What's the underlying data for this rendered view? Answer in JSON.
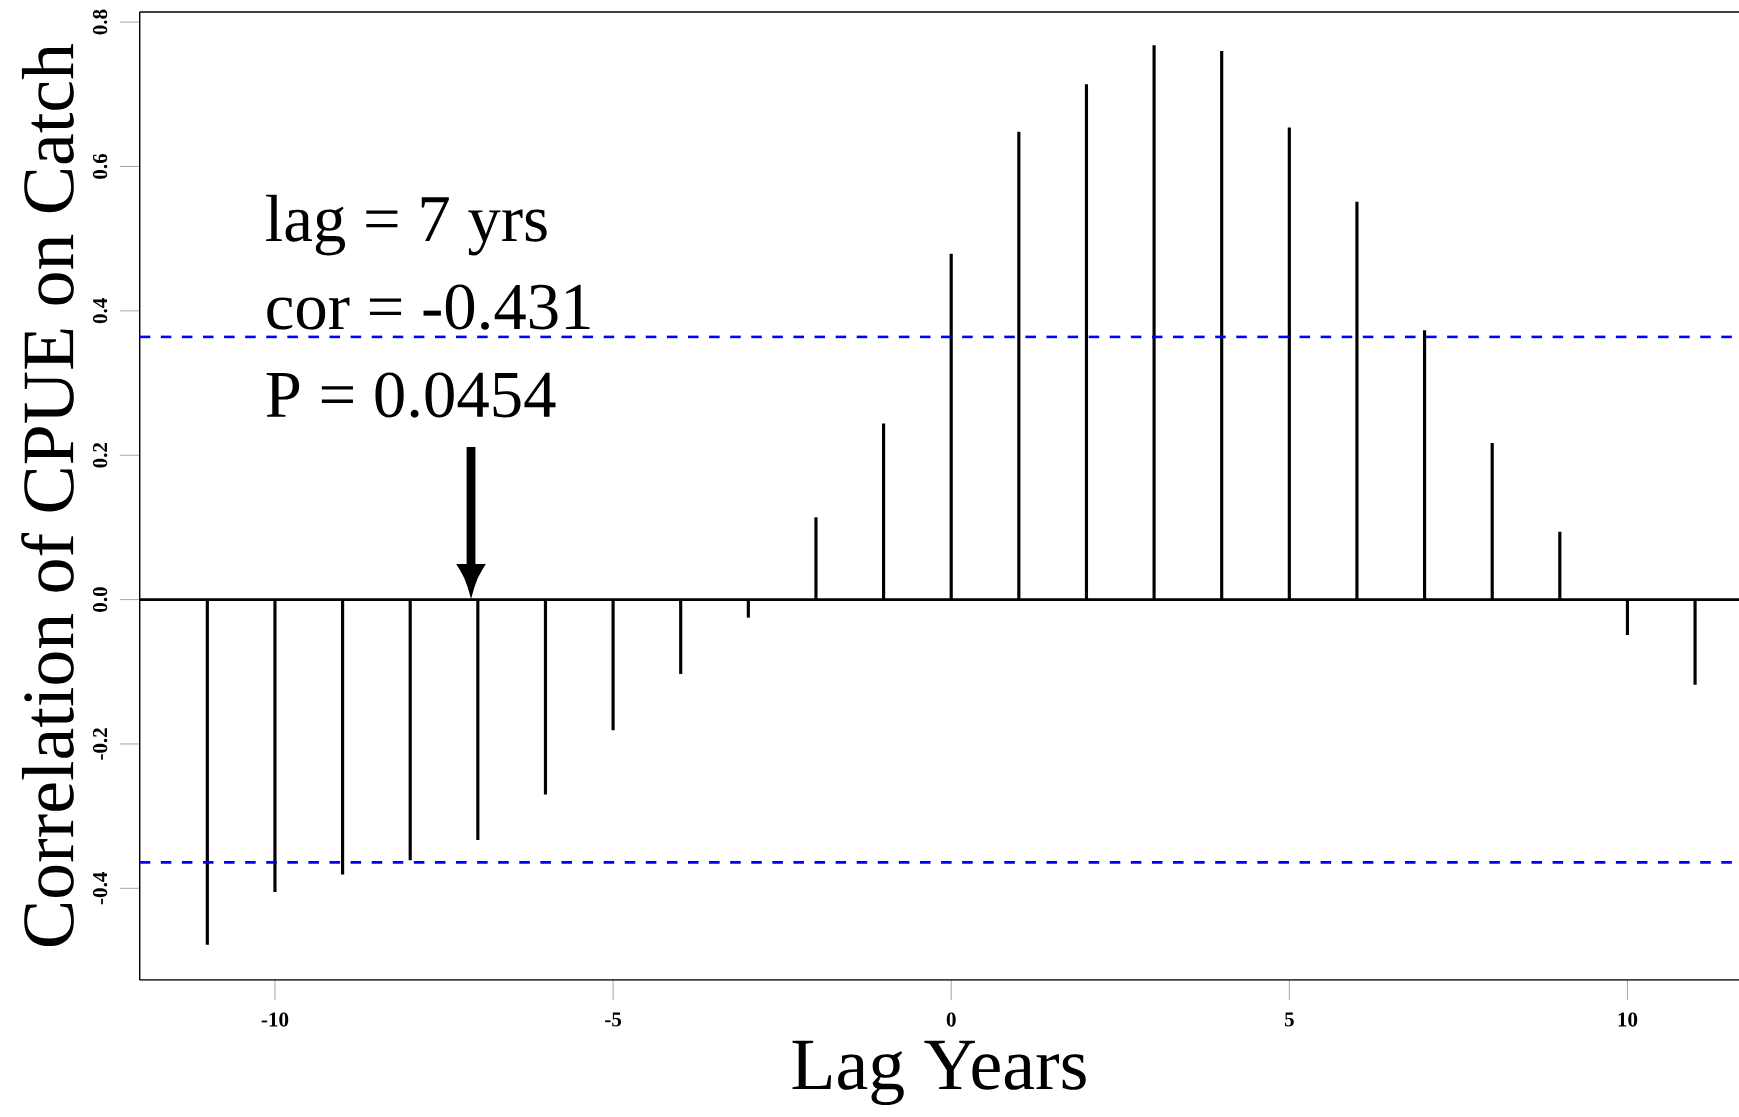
{
  "chart_data": {
    "type": "bar",
    "xlabel": "Lag Years",
    "ylabel": "Correlation of CPUE on Catch",
    "x": [
      -11,
      -10,
      -9,
      -8,
      -7,
      -6,
      -5,
      -4,
      -3,
      -2,
      -1,
      0,
      1,
      2,
      3,
      4,
      5,
      6,
      7,
      8,
      9,
      10,
      11
    ],
    "values": [
      -0.478,
      -0.405,
      -0.381,
      -0.361,
      -0.333,
      -0.27,
      -0.181,
      -0.103,
      -0.025,
      0.114,
      0.244,
      0.479,
      0.648,
      0.714,
      0.768,
      0.76,
      0.654,
      0.551,
      0.373,
      0.217,
      0.094,
      -0.049,
      -0.118
    ],
    "color": "#000000",
    "xlim": [
      -12,
      11.65
    ],
    "ylim": [
      -0.527,
      0.814
    ],
    "xticks": [
      -10,
      -5,
      0,
      5,
      10
    ],
    "yticks": [
      -0.4,
      -0.2,
      {
        "value": 0,
        "label": "0.0"
      },
      0.2,
      0.4,
      0.6,
      0.8
    ],
    "ref_lines": [
      {
        "axis": "y",
        "value": 0.364,
        "color": "#0000ff",
        "line_style": "dashed"
      },
      {
        "axis": "y",
        "value": -0.364,
        "color": "#0000ff",
        "line_style": "dashed"
      },
      {
        "axis": "y",
        "value": 0,
        "color": "#000000",
        "line_style": "solid"
      }
    ],
    "annotations": [
      "lag = 7 yrs",
      "cor = -0.431",
      "P     = 0.0454"
    ]
  }
}
